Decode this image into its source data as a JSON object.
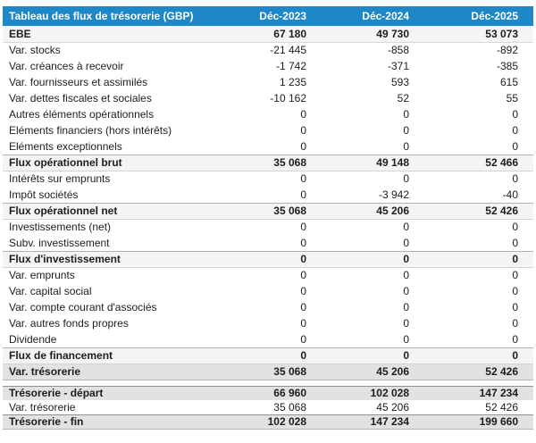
{
  "chart_data": {
    "type": "table",
    "title": "Tableau des flux de trésorerie (GBP)",
    "currency": "GBP",
    "columns": [
      "Déc-2023",
      "Déc-2024",
      "Déc-2025"
    ],
    "rows": [
      {
        "label": "EBE",
        "values": [
          "67 180",
          "49 730",
          "53 073"
        ],
        "style": "lead"
      },
      {
        "label": "Var. stocks",
        "values": [
          "-21 445",
          "-858",
          "-892"
        ],
        "style": "normal"
      },
      {
        "label": "Var. créances à recevoir",
        "values": [
          "-1 742",
          "-371",
          "-385"
        ],
        "style": "normal"
      },
      {
        "label": "Var. fournisseurs et assimilés",
        "values": [
          "1 235",
          "593",
          "615"
        ],
        "style": "normal"
      },
      {
        "label": "Var. dettes fiscales et sociales",
        "values": [
          "-10 162",
          "52",
          "55"
        ],
        "style": "normal"
      },
      {
        "label": "Autres éléments opérationnels",
        "values": [
          "0",
          "0",
          "0"
        ],
        "style": "normal"
      },
      {
        "label": "Eléments financiers (hors intérêts)",
        "values": [
          "0",
          "0",
          "0"
        ],
        "style": "normal"
      },
      {
        "label": "Eléments exceptionnels",
        "values": [
          "0",
          "0",
          "0"
        ],
        "style": "normal"
      },
      {
        "label": "Flux opérationnel brut",
        "values": [
          "35 068",
          "49 148",
          "52 466"
        ],
        "style": "subtotal"
      },
      {
        "label": "Intérêts sur emprunts",
        "values": [
          "0",
          "0",
          "0"
        ],
        "style": "normal"
      },
      {
        "label": "Impôt sociétés",
        "values": [
          "0",
          "-3 942",
          "-40"
        ],
        "style": "normal"
      },
      {
        "label": "Flux opérationnel net",
        "values": [
          "35 068",
          "45 206",
          "52 426"
        ],
        "style": "subtotal"
      },
      {
        "label": "Investissements (net)",
        "values": [
          "0",
          "0",
          "0"
        ],
        "style": "normal"
      },
      {
        "label": "Subv. investissement",
        "values": [
          "0",
          "0",
          "0"
        ],
        "style": "normal"
      },
      {
        "label": "Flux d'investissement",
        "values": [
          "0",
          "0",
          "0"
        ],
        "style": "subtotal"
      },
      {
        "label": "Var. emprunts",
        "values": [
          "0",
          "0",
          "0"
        ],
        "style": "normal"
      },
      {
        "label": "Var. capital social",
        "values": [
          "0",
          "0",
          "0"
        ],
        "style": "normal"
      },
      {
        "label": "Var. compte courant d'associés",
        "values": [
          "0",
          "0",
          "0"
        ],
        "style": "normal"
      },
      {
        "label": "Var. autres fonds propres",
        "values": [
          "0",
          "0",
          "0"
        ],
        "style": "normal"
      },
      {
        "label": "Dividende",
        "values": [
          "0",
          "0",
          "0"
        ],
        "style": "normal"
      },
      {
        "label": "Flux de financement",
        "values": [
          "0",
          "0",
          "0"
        ],
        "style": "subtotal"
      },
      {
        "label": "Var. trésorerie",
        "values": [
          "35 068",
          "45 206",
          "52 426"
        ],
        "style": "total-end"
      }
    ],
    "summary_rows": [
      {
        "label": "Trésorerie - départ",
        "values": [
          "66 960",
          "102 028",
          "147 234"
        ],
        "style": "total"
      },
      {
        "label": "Var. trésorerie",
        "values": [
          "35 068",
          "45 206",
          "52 426"
        ],
        "style": "normal"
      },
      {
        "label": "Trésorerie - fin",
        "values": [
          "102 028",
          "147 234",
          "199 660"
        ],
        "style": "total-end"
      }
    ]
  },
  "colors": {
    "header_bg": "#1e87c8",
    "header_text": "#ffffff",
    "lead_row_bg": "#f5f5f6",
    "subtotal_row_bg": "#f4f4f5",
    "total_row_bg": "#e2e2e3",
    "text": "#1d1d1d"
  }
}
